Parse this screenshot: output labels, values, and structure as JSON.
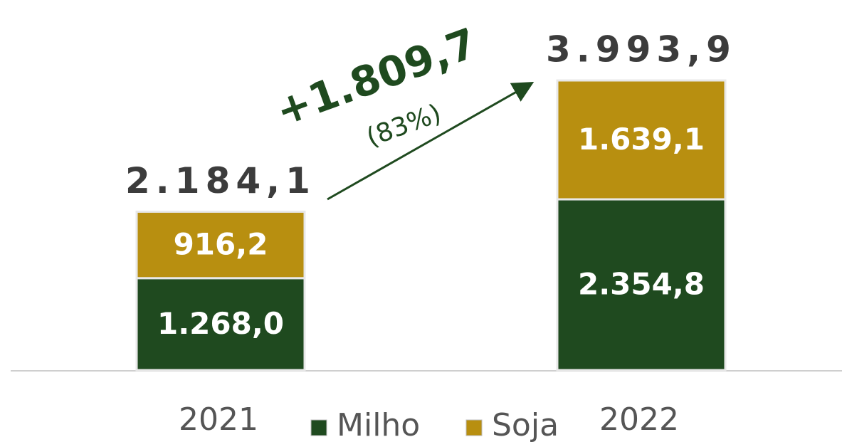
{
  "chart_data": {
    "type": "stacked_bar",
    "categories": [
      "2021",
      "2022"
    ],
    "series": [
      {
        "name": "Milho",
        "color": "#1f4a1f",
        "values": [
          1268.0,
          2354.8
        ],
        "value_labels": [
          "1.268,0",
          "2.354,8"
        ]
      },
      {
        "name": "Soja",
        "color": "#b88f10",
        "values": [
          916.2,
          1639.1
        ],
        "value_labels": [
          "916,2",
          "1.639,1"
        ]
      }
    ],
    "totals": [
      2184.1,
      3993.9
    ],
    "total_labels": [
      "2.184,1",
      "3.993,9"
    ],
    "annotations": [
      "+1.809,7",
      "(83%)"
    ]
  }
}
